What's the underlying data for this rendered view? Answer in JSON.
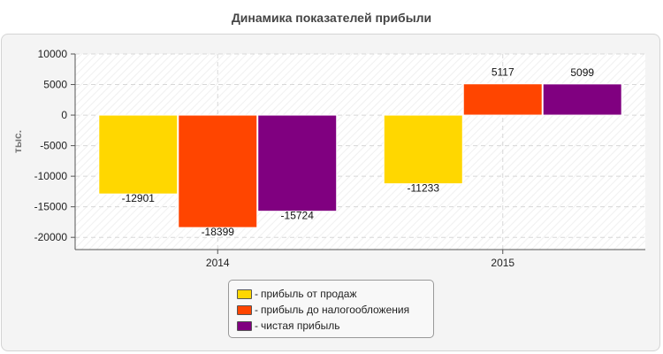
{
  "chart_data": {
    "type": "bar",
    "title": "Динамика показателей прибыли",
    "xlabel": "",
    "ylabel": "тыс.",
    "categories": [
      "2014",
      "2015"
    ],
    "series": [
      {
        "name": "прибыль от продаж",
        "color": "#FFD700",
        "values": [
          -12901,
          -11233
        ]
      },
      {
        "name": "прибыль до налогообложения",
        "color": "#FF4500",
        "values": [
          -18399,
          5117
        ]
      },
      {
        "name": "чистая прибыль",
        "color": "#800080",
        "values": [
          -15724,
          5099
        ]
      }
    ],
    "ylim": [
      -22000,
      10000
    ],
    "yticks": [
      10000,
      5000,
      0,
      -5000,
      -10000,
      -15000,
      -20000
    ],
    "grid": true,
    "legend_position": "bottom-center",
    "legend_prefix": "-"
  }
}
